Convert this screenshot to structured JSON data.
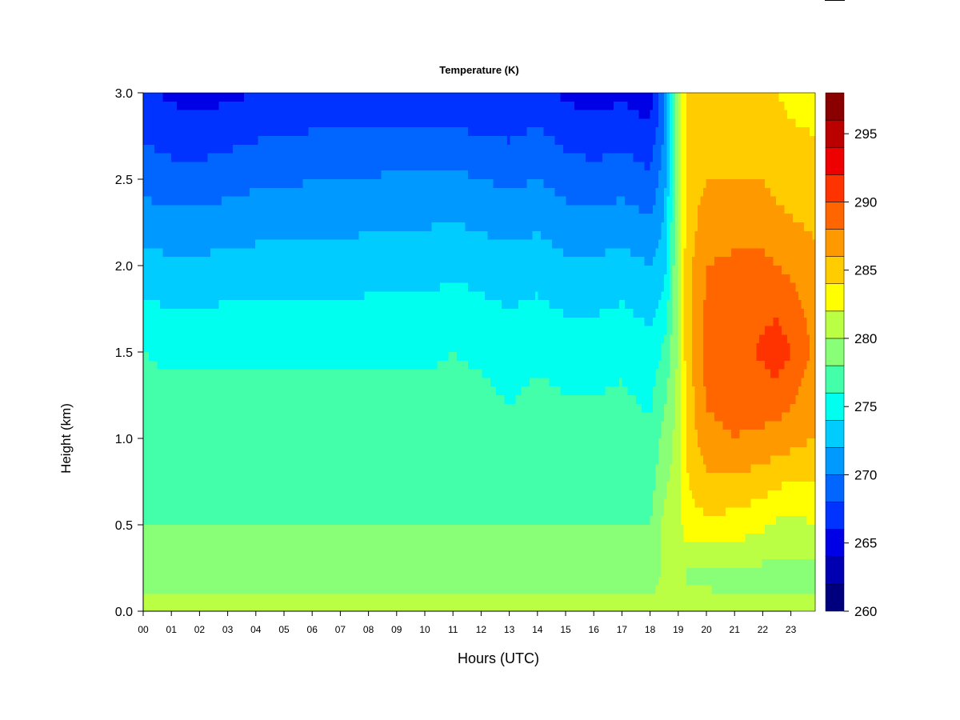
{
  "chart_data": {
    "type": "heatmap",
    "title": "Temperature (K)",
    "xlabel": "Hours (UTC)",
    "ylabel": "Height (km)",
    "x_tick_labels": [
      "00",
      "01",
      "02",
      "03",
      "04",
      "05",
      "06",
      "07",
      "08",
      "09",
      "10",
      "11",
      "12",
      "13",
      "14",
      "15",
      "16",
      "17",
      "18",
      "19",
      "20",
      "21",
      "22",
      "23"
    ],
    "y_tick_labels": [
      "0.0",
      "0.5",
      "1.0",
      "1.5",
      "2.0",
      "2.5",
      "3.0"
    ],
    "xlim": [
      0,
      23.85
    ],
    "ylim": [
      0,
      3.0
    ],
    "colorbar": {
      "tick_labels": [
        "260",
        "265",
        "270",
        "275",
        "280",
        "285",
        "290",
        "295"
      ],
      "range": [
        260,
        298
      ],
      "levels": [
        260,
        262.5,
        265,
        267.5,
        270,
        272.5,
        275,
        277.5,
        280,
        282.5,
        285,
        287.5,
        290,
        292.5,
        295,
        297.5
      ],
      "colors": [
        "#00007f",
        "#0000b2",
        "#0000e6",
        "#0033ff",
        "#0066ff",
        "#0099ff",
        "#00ccff",
        "#00ffee",
        "#44ffaa",
        "#88ff77",
        "#bbff44",
        "#ffff00",
        "#ffcc00",
        "#ff9900",
        "#ff6600",
        "#ff3300",
        "#ee0000",
        "#bb0000",
        "#8a0000"
      ]
    },
    "hours": [
      0,
      1,
      2,
      3,
      4,
      5,
      6,
      7,
      8,
      9,
      10,
      11,
      12,
      13,
      14,
      15,
      16,
      17,
      18,
      18.5,
      19.0,
      19.3,
      20,
      21,
      22,
      22.5,
      23,
      23.8
    ],
    "heights_km": [
      0.0,
      0.2,
      0.5,
      1.0,
      1.5,
      2.0,
      2.5,
      3.0
    ],
    "temperature_K": [
      [
        284.0,
        281.0,
        280.0,
        279.0,
        277.5,
        273.5,
        269.0,
        265.5
      ],
      [
        284.0,
        281.0,
        280.0,
        279.0,
        277.0,
        273.0,
        268.5,
        264.5
      ],
      [
        284.0,
        281.0,
        280.0,
        279.0,
        277.0,
        273.0,
        268.5,
        264.0
      ],
      [
        284.0,
        281.0,
        280.0,
        279.0,
        277.0,
        273.5,
        269.0,
        264.5
      ],
      [
        284.0,
        281.0,
        280.0,
        279.0,
        277.0,
        273.5,
        269.5,
        265.0
      ],
      [
        284.0,
        281.0,
        280.0,
        279.0,
        277.0,
        273.5,
        269.5,
        265.5
      ],
      [
        284.0,
        281.0,
        280.0,
        279.0,
        277.0,
        273.5,
        270.0,
        265.5
      ],
      [
        284.0,
        281.0,
        280.0,
        279.0,
        277.0,
        273.5,
        270.0,
        265.5
      ],
      [
        284.0,
        281.0,
        280.0,
        279.0,
        277.0,
        274.0,
        270.0,
        265.5
      ],
      [
        284.0,
        281.0,
        280.0,
        279.0,
        277.0,
        274.0,
        270.5,
        265.5
      ],
      [
        284.0,
        281.0,
        280.0,
        279.0,
        277.0,
        274.0,
        270.5,
        265.5
      ],
      [
        284.0,
        281.0,
        280.0,
        279.0,
        277.5,
        274.5,
        270.5,
        265.5
      ],
      [
        284.0,
        281.0,
        280.0,
        279.0,
        277.0,
        274.0,
        270.0,
        265.0
      ],
      [
        284.0,
        280.5,
        280.0,
        278.0,
        276.5,
        273.5,
        269.5,
        265.0
      ],
      [
        284.0,
        281.0,
        280.0,
        279.0,
        277.0,
        274.0,
        270.0,
        266.0
      ],
      [
        284.0,
        281.0,
        280.0,
        278.5,
        276.5,
        273.0,
        269.0,
        264.5
      ],
      [
        284.0,
        281.0,
        280.0,
        278.5,
        276.5,
        273.0,
        268.5,
        264.0
      ],
      [
        284.0,
        281.0,
        280.0,
        278.5,
        277.0,
        273.5,
        269.0,
        264.5
      ],
      [
        283.5,
        281.0,
        280.0,
        278.0,
        276.0,
        272.5,
        268.0,
        263.5
      ],
      [
        284.0,
        283.0,
        283.0,
        281.0,
        278.0,
        274.0,
        271.5,
        269.5
      ],
      [
        285.0,
        284.5,
        284.0,
        283.5,
        283.0,
        283.0,
        283.0,
        283.0
      ],
      [
        283.5,
        282.0,
        286.5,
        288.0,
        289.0,
        289.0,
        288.5,
        288.0
      ],
      [
        283.5,
        282.0,
        287.0,
        292.0,
        293.5,
        292.5,
        290.0,
        288.5
      ],
      [
        283.5,
        281.5,
        286.5,
        292.5,
        294.0,
        293.0,
        290.0,
        288.5
      ],
      [
        283.5,
        281.5,
        285.5,
        292.0,
        295.5,
        293.0,
        290.0,
        288.0
      ],
      [
        283.5,
        281.5,
        284.5,
        291.5,
        296.5,
        292.5,
        289.0,
        287.5
      ],
      [
        283.5,
        281.5,
        284.0,
        291.0,
        295.0,
        292.0,
        288.5,
        287.0
      ],
      [
        283.5,
        281.5,
        285.0,
        290.0,
        292.0,
        291.0,
        288.0,
        287.0
      ]
    ]
  }
}
